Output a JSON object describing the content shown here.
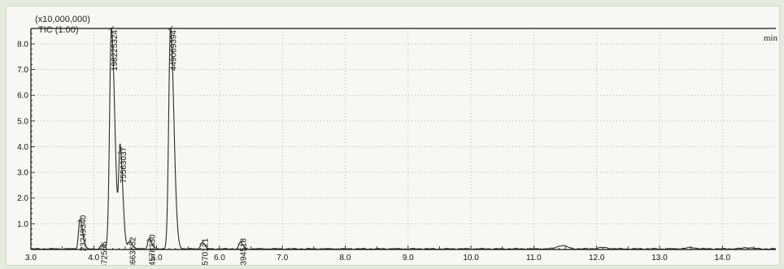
{
  "chart_data": {
    "type": "line",
    "scale_label": "(x10,000,000)",
    "trace_label": "TIC (1.00)",
    "x_unit_label": "min",
    "xlim": [
      3.0,
      14.85
    ],
    "ylim": [
      0,
      8.6
    ],
    "x_ticks": [
      "3.0",
      "4.0",
      "5.0",
      "6.0",
      "7.0",
      "8.0",
      "9.0",
      "10.0",
      "11.0",
      "12.0",
      "13.0",
      "14.0"
    ],
    "y_ticks": [
      "1.0",
      "2.0",
      "3.0",
      "4.0",
      "5.0",
      "6.0",
      "7.0",
      "8.0"
    ],
    "grid": true,
    "peaks": [
      {
        "rt": 3.78,
        "height": 1.15,
        "area_label": "23249340"
      },
      {
        "rt": 4.12,
        "height": 0.12,
        "area_label": "2372566"
      },
      {
        "rt": 4.28,
        "height": 8.6,
        "area_label": "198225324"
      },
      {
        "rt": 4.42,
        "height": 3.8,
        "area_label": "75563037"
      },
      {
        "rt": 4.57,
        "height": 0.3,
        "area_label": "8663652"
      },
      {
        "rt": 4.88,
        "height": 0.4,
        "area_label": "4578330"
      },
      {
        "rt": 5.22,
        "height": 8.6,
        "area_label": "449069394"
      },
      {
        "rt": 5.72,
        "height": 0.25,
        "area_label": "5570121"
      },
      {
        "rt": 6.33,
        "height": 0.25,
        "area_label": "5394518"
      }
    ],
    "minor_bumps": [
      {
        "rt": 11.45,
        "height": 0.13
      },
      {
        "rt": 12.1,
        "height": 0.05
      },
      {
        "rt": 13.5,
        "height": 0.05
      },
      {
        "rt": 14.4,
        "height": 0.05
      }
    ]
  },
  "colors": {
    "trace": "#2a2a2a",
    "grid": "#9a9a9a",
    "axis": "#111111",
    "panel": "#f7f7f4",
    "frame": "#e3ebdd"
  }
}
